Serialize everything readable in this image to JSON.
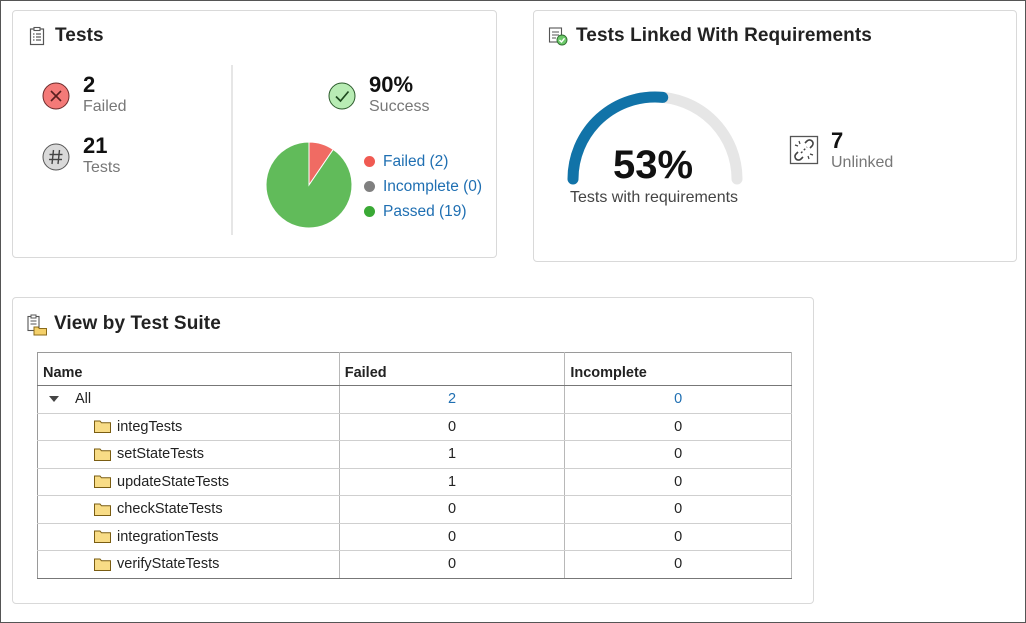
{
  "tests_card": {
    "title": "Tests",
    "failed": {
      "value": "2",
      "label": "Failed"
    },
    "total": {
      "value": "21",
      "label": "Tests"
    },
    "success": {
      "value": "90%",
      "label": "Success"
    },
    "legend": [
      {
        "label": "Failed (2)",
        "color": "#f05a52"
      },
      {
        "label": "Incomplete (0)",
        "color": "#808080"
      },
      {
        "label": "Passed (19)",
        "color": "#3aa935"
      }
    ],
    "pie": {
      "failed": 2,
      "incomplete": 0,
      "passed": 19,
      "failed_color": "#f06b63",
      "passed_color": "#61bb5a"
    }
  },
  "requirements_card": {
    "title": "Tests Linked With Requirements",
    "gauge_percent": "53%",
    "gauge_fraction": 0.53,
    "gauge_caption": "Tests with requirements",
    "unlinked": {
      "value": "7",
      "label": "Unlinked"
    },
    "colors": {
      "arc": "#1173a8",
      "track": "#e6e6e6"
    }
  },
  "suite_card": {
    "title": "View by Test Suite",
    "columns": [
      "Name",
      "Failed",
      "Incomplete"
    ],
    "root": {
      "name": "All",
      "failed": "2",
      "incomplete": "0"
    },
    "rows": [
      {
        "name": "integTests",
        "failed": "0",
        "incomplete": "0"
      },
      {
        "name": "setStateTests",
        "failed": "1",
        "incomplete": "0"
      },
      {
        "name": "updateStateTests",
        "failed": "1",
        "incomplete": "0"
      },
      {
        "name": "checkStateTests",
        "failed": "0",
        "incomplete": "0"
      },
      {
        "name": "integrationTests",
        "failed": "0",
        "incomplete": "0"
      },
      {
        "name": "verifyStateTests",
        "failed": "0",
        "incomplete": "0"
      }
    ]
  }
}
